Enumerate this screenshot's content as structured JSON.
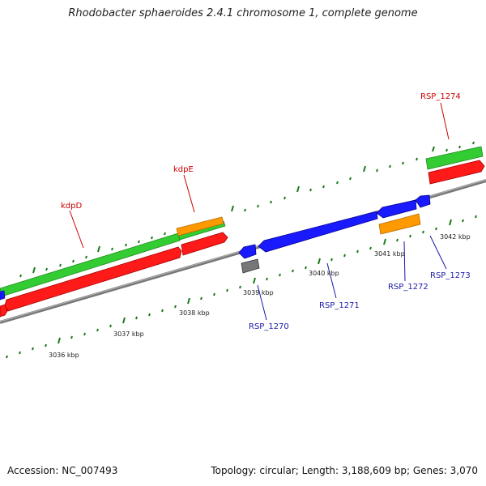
{
  "title": "Rhodobacter sphaeroides 2.4.1 chromosome 1, complete genome",
  "footer": {
    "accession": "Accession: NC_007493",
    "stats": "Topology: circular; Length: 3,188,609 bp; Genes: 3,070"
  },
  "colors": {
    "backbone": "#8c8c8c",
    "forward_gene": "#33cc33",
    "forward_cds": "#ff1a1a",
    "reverse_gene": "#1a1aff",
    "other": "#ff9900",
    "pseudo": "#777777",
    "tick": "#1a7a1a",
    "forward_label": "#cc0000",
    "reverse_label": "#1a1aaa"
  },
  "features": {
    "kdpD": "kdpD",
    "kdpE": "kdpE",
    "RSP_1274": "RSP_1274",
    "RSP_1270": "RSP_1270",
    "RSP_1271": "RSP_1271",
    "RSP_1272": "RSP_1272",
    "RSP_1273": "RSP_1273"
  },
  "ticks": {
    "t3036": "3036 kbp",
    "t3037": "3037 kbp",
    "t3038": "3038 kbp",
    "t3039": "3039 kbp",
    "t3040": "3040 kbp",
    "t3041": "3041 kbp",
    "t3042": "3042 kbp"
  }
}
